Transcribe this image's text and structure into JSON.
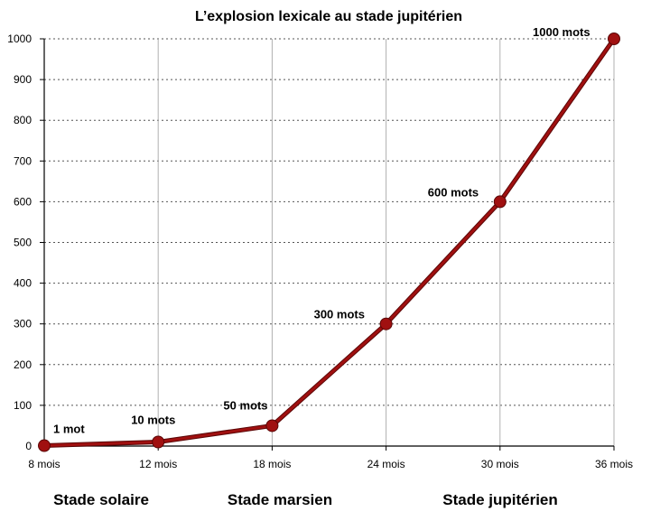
{
  "chart_data": {
    "type": "line",
    "title": "L’explosion lexicale au stade jupitérien",
    "xlabel": "",
    "ylabel": "",
    "categories": [
      "8 mois",
      "12 mois",
      "18 mois",
      "24 mois",
      "30 mois",
      "36 mois"
    ],
    "series": [
      {
        "values": [
          1,
          10,
          50,
          300,
          600,
          1000
        ],
        "color": "#a01010",
        "data_labels": [
          "1 mot",
          "10 mots",
          "50 mots",
          "300 mots",
          "600 mots",
          "1000 mots"
        ]
      }
    ],
    "ylim": [
      0,
      1000
    ],
    "yticks": [
      0,
      100,
      200,
      300,
      400,
      500,
      600,
      700,
      800,
      900,
      1000
    ],
    "grid": true,
    "annotations": [
      "Stade solaire",
      "Stade marsien",
      "Stade jupitérien"
    ]
  }
}
